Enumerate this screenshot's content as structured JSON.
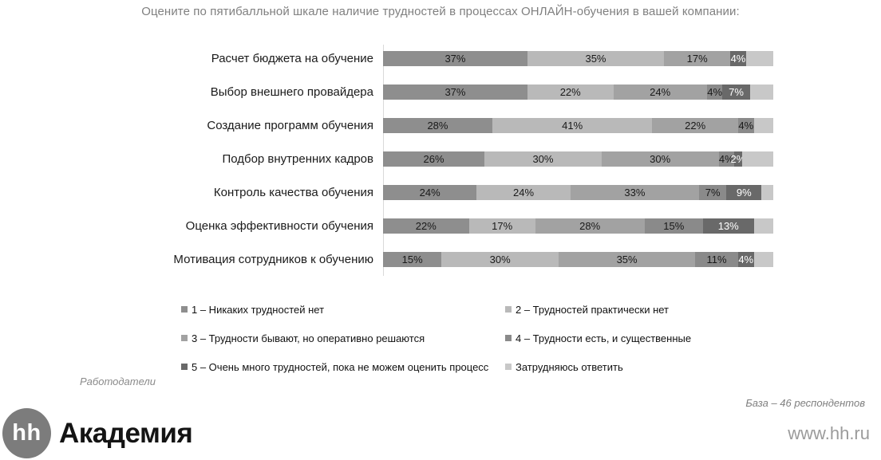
{
  "chart_data": {
    "type": "bar",
    "orientation": "horizontal",
    "stacked": true,
    "unit": "%",
    "xlim": [
      0,
      100
    ],
    "grid": false,
    "legend_position": "bottom",
    "title": "Оцените по пятибалльной шкале наличие трудностей в процессах ОНЛАЙН-обучения в вашей компании:",
    "categories": [
      "Расчет бюджета на обучение",
      "Выбор внешнего провайдера",
      "Создание программ обучения",
      "Подбор внутренних кадров",
      "Контроль качества обучения",
      "Оценка эффективности обучения",
      "Мотивация сотрудников к обучению"
    ],
    "series": [
      {
        "name": "1 – Никаких трудностей нет",
        "color": "#8e8e8e",
        "label_color": "#1a1a1a",
        "show_value_labels": true,
        "values": [
          37,
          37,
          28,
          26,
          24,
          22,
          15
        ]
      },
      {
        "name": "2 – Трудностей практически нет",
        "color": "#b9b9b9",
        "label_color": "#1a1a1a",
        "show_value_labels": true,
        "values": [
          35,
          22,
          41,
          30,
          24,
          17,
          30
        ]
      },
      {
        "name": "3 – Трудности бывают, но оперативно решаются",
        "color": "#a2a2a2",
        "label_color": "#1a1a1a",
        "show_value_labels": true,
        "values": [
          17,
          24,
          22,
          30,
          33,
          28,
          35
        ]
      },
      {
        "name": "4 – Трудности есть, и существенные",
        "color": "#8a8a8a",
        "label_color": "#1a1a1a",
        "show_value_labels": true,
        "values": [
          0,
          4,
          4,
          4,
          7,
          15,
          11
        ]
      },
      {
        "name": "5 – Очень много трудностей, пока не можем оценить процесс",
        "color": "#696969",
        "label_color": "#ffffff",
        "show_value_labels": true,
        "values": [
          4,
          7,
          0,
          2,
          9,
          13,
          4
        ]
      },
      {
        "name": "Затрудняюсь ответить",
        "color": "#c8c8c8",
        "label_color": "#1a1a1a",
        "show_value_labels": false,
        "values": [
          7,
          6,
          5,
          8,
          3,
          5,
          5
        ]
      }
    ]
  },
  "footer": {
    "audience_note": "Работодатели",
    "base_note": "База – 46 респондентов",
    "logo": {
      "circle_text": "hh",
      "brand": "Академия"
    },
    "website": "www.hh.ru"
  }
}
